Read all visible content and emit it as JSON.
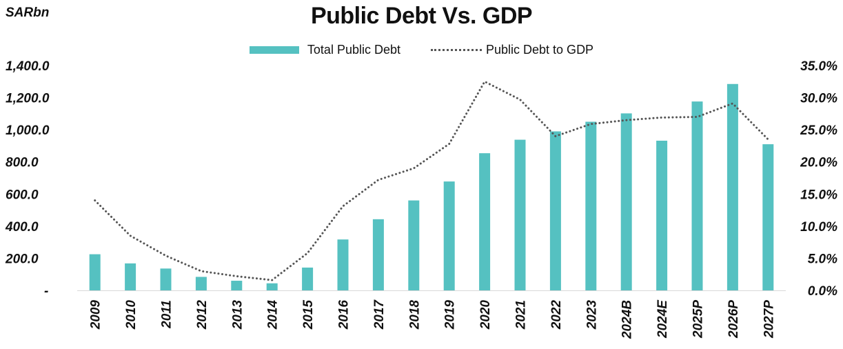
{
  "unit_label": "SARbn",
  "chart_data": {
    "type": "bar",
    "title": "Public Debt Vs. GDP",
    "categories": [
      "2009",
      "2010",
      "2011",
      "2012",
      "2013",
      "2014",
      "2015",
      "2016",
      "2017",
      "2018",
      "2019",
      "2020",
      "2021",
      "2022",
      "2023",
      "2024B",
      "2024E",
      "2025P",
      "2026P",
      "2027P"
    ],
    "series": [
      {
        "name": "Total Public Debt",
        "type": "bar",
        "axis": "left",
        "color": "#55C1C1",
        "values": [
          225,
          168,
          136,
          84,
          60,
          44,
          142,
          317,
          443,
          560,
          678,
          854,
          938,
          990,
          1050,
          1102,
          932,
          1176,
          1285,
          910
        ]
      },
      {
        "name": "Public Debt to GDP",
        "type": "line",
        "style": "dotted",
        "axis": "right",
        "color": "#555555",
        "values": [
          14.0,
          8.5,
          5.4,
          3.0,
          2.2,
          1.6,
          5.8,
          13.1,
          17.2,
          19.0,
          22.8,
          32.5,
          29.7,
          24.0,
          25.9,
          26.5,
          26.9,
          27.0,
          29.1,
          23.5
        ]
      }
    ],
    "y_left": {
      "ylim": [
        0,
        1400
      ],
      "ticks": [
        "-",
        "200.0",
        "400.0",
        "600.0",
        "800.0",
        "1,000.0",
        "1,200.0",
        "1,400.0"
      ]
    },
    "y_right": {
      "ylim": [
        0,
        35
      ],
      "ticks": [
        "0.0%",
        "5.0%",
        "10.0%",
        "15.0%",
        "20.0%",
        "25.0%",
        "30.0%",
        "35.0%"
      ]
    },
    "grid": false,
    "legend_position": "top"
  }
}
